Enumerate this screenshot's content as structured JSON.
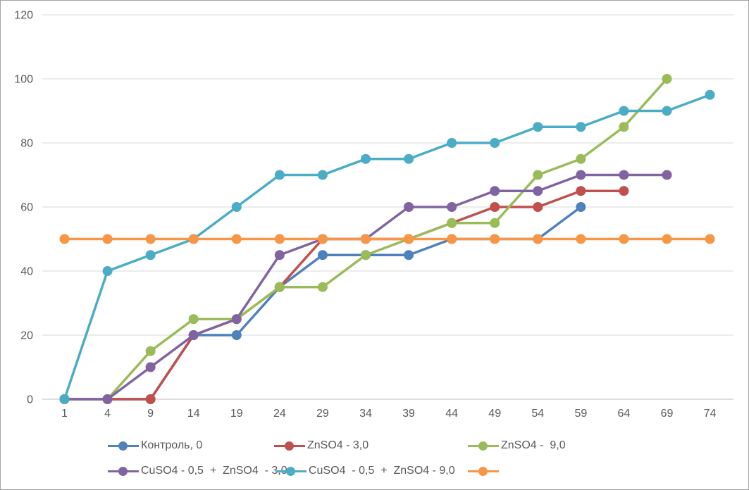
{
  "chart_data": {
    "type": "line",
    "title": "",
    "xlabel": "",
    "ylabel": "",
    "x_categories": [
      1,
      4,
      9,
      14,
      19,
      24,
      29,
      34,
      39,
      44,
      49,
      54,
      59,
      64,
      69,
      74
    ],
    "ylim": [
      0,
      120
    ],
    "y_ticks": [
      0,
      20,
      40,
      60,
      80,
      100,
      120
    ],
    "grid": "horizontal",
    "legend_position": "bottom",
    "series": [
      {
        "name": "Контроль, 0",
        "color": "#4F81BD",
        "values": [
          0,
          0,
          0,
          20,
          20,
          35,
          45,
          45,
          45,
          50,
          50,
          50,
          60,
          null,
          null,
          null
        ]
      },
      {
        "name": "ZnSO4 - 3,0",
        "color": "#C0504D",
        "values": [
          0,
          0,
          0,
          20,
          25,
          35,
          50,
          50,
          50,
          55,
          60,
          60,
          65,
          65,
          null,
          null
        ]
      },
      {
        "name": "ZnSO4 -  9,0",
        "color": "#9BBB59",
        "values": [
          0,
          0,
          15,
          25,
          25,
          35,
          35,
          45,
          50,
          55,
          55,
          70,
          75,
          85,
          100,
          null
        ]
      },
      {
        "name": "CuSO4 - 0,5  +  ZnSO4  - 3,0",
        "color": "#8064A2",
        "values": [
          0,
          0,
          10,
          20,
          25,
          45,
          50,
          50,
          60,
          60,
          65,
          65,
          70,
          70,
          70,
          null
        ]
      },
      {
        "name": "CuSO4  - 0,5  +  ZnSO4 - 9,0",
        "color": "#4BACC6",
        "values": [
          0,
          40,
          45,
          50,
          60,
          70,
          70,
          75,
          75,
          80,
          80,
          85,
          85,
          90,
          90,
          95
        ]
      },
      {
        "name": "",
        "color": "#F79646",
        "values": [
          50,
          50,
          50,
          50,
          50,
          50,
          50,
          50,
          50,
          50,
          50,
          50,
          50,
          50,
          50,
          50
        ]
      }
    ],
    "colors": {
      "gridline": "#D9D9D9",
      "axis_line": "#BFBFBF",
      "tick_label": "#595959"
    }
  }
}
